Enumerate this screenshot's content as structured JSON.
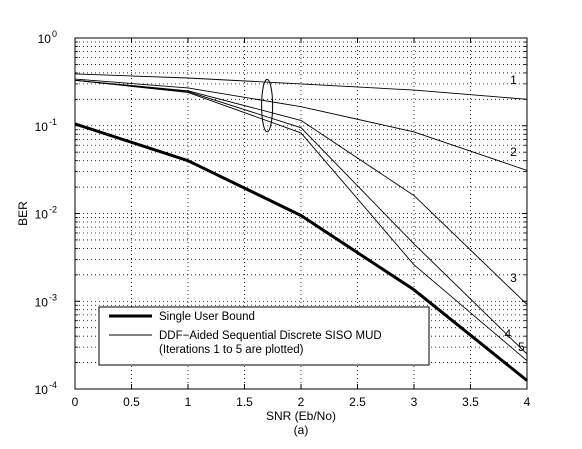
{
  "chart_data": {
    "type": "line",
    "xlabel": "SNR (Eb/No)",
    "ylabel": "BER",
    "caption": "(a)",
    "xlim": [
      0,
      4
    ],
    "ylim": [
      0.0001,
      1
    ],
    "yscale": "log",
    "grid": true,
    "legend_position": "bottom-left",
    "x_ticks": [
      "0",
      "0.5",
      "1",
      "1.5",
      "2",
      "2.5",
      "3",
      "3.5",
      "4"
    ],
    "y_ticks": [
      {
        "base": "10",
        "exp": "0",
        "value": 1
      },
      {
        "base": "10",
        "exp": "-1",
        "value": 0.1
      },
      {
        "base": "10",
        "exp": "-2",
        "value": 0.01
      },
      {
        "base": "10",
        "exp": "-3",
        "value": 0.001
      },
      {
        "base": "10",
        "exp": "-4",
        "value": 0.0001
      }
    ],
    "legend": [
      {
        "lines": [
          "Single User Bound"
        ],
        "style": "thick"
      },
      {
        "lines": [
          "DDF−Aided Sequential Discrete SISO MUD",
          "(Iterations 1 to 5 are plotted)"
        ],
        "style": "thin"
      }
    ],
    "series": [
      {
        "label": "",
        "style": "thick",
        "x": [
          0,
          1,
          2,
          3,
          4
        ],
        "y": [
          0.105,
          0.04,
          0.0095,
          0.00135,
          0.000125
        ]
      },
      {
        "label": "1",
        "style": "thin",
        "x": [
          0,
          1,
          2,
          3,
          4
        ],
        "y": [
          0.39,
          0.35,
          0.3,
          0.255,
          0.2
        ]
      },
      {
        "label": "2",
        "style": "thin",
        "x": [
          0,
          1,
          2,
          3,
          4
        ],
        "y": [
          0.34,
          0.27,
          0.165,
          0.085,
          0.031
        ]
      },
      {
        "label": "3",
        "style": "thin",
        "x": [
          0,
          1,
          2,
          3,
          4
        ],
        "y": [
          0.33,
          0.25,
          0.115,
          0.016,
          0.00092
        ]
      },
      {
        "label": "4",
        "style": "thin",
        "x": [
          0,
          1,
          2,
          3,
          4
        ],
        "y": [
          0.33,
          0.245,
          0.095,
          0.0045,
          0.00025
        ]
      },
      {
        "label": "5",
        "style": "thin",
        "x": [
          0,
          1,
          2,
          3,
          4
        ],
        "y": [
          0.33,
          0.24,
          0.083,
          0.0026,
          0.00021
        ]
      }
    ]
  }
}
